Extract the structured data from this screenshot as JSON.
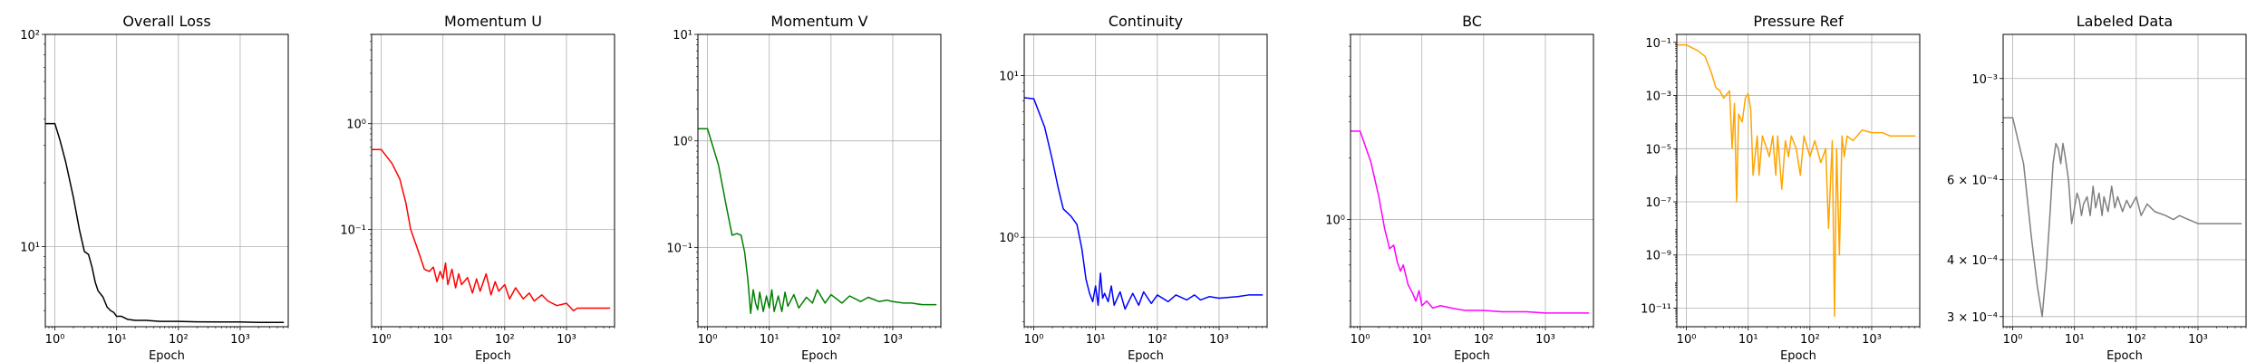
{
  "chart_data": [
    {
      "type": "line",
      "title": "Overall Loss",
      "xlabel": "Epoch",
      "ylabel": "",
      "xscale": "log",
      "yscale": "log",
      "xlim": [
        0.7,
        6000
      ],
      "ylim": [
        4.2,
        100
      ],
      "grid": true,
      "color": "#000000",
      "x_ticks": [
        1,
        10,
        100,
        1000
      ],
      "y_ticks": [
        10,
        100
      ],
      "series": [
        {
          "color": "#000000",
          "x": [
            0.7,
            1,
            1.2,
            1.5,
            2,
            2.5,
            3,
            3.5,
            4,
            4.5,
            5,
            6,
            7,
            8,
            9,
            10,
            12,
            15,
            20,
            30,
            50,
            100,
            200,
            500,
            1000,
            2000,
            5000
          ],
          "y": [
            38,
            38,
            32,
            25,
            17,
            12,
            9.5,
            9.2,
            8.0,
            6.8,
            6.2,
            5.8,
            5.2,
            5.0,
            4.9,
            4.7,
            4.7,
            4.55,
            4.5,
            4.5,
            4.45,
            4.45,
            4.43,
            4.42,
            4.42,
            4.4,
            4.4
          ]
        }
      ]
    },
    {
      "type": "line",
      "title": "Momentum U",
      "xlabel": "Epoch",
      "ylabel": "",
      "xscale": "log",
      "yscale": "log",
      "xlim": [
        0.7,
        6000
      ],
      "ylim": [
        0.012,
        7
      ],
      "grid": true,
      "color": "#ff0000",
      "x_ticks": [
        1,
        10,
        100,
        1000
      ],
      "y_ticks": [
        0.1,
        1
      ],
      "series": [
        {
          "color": "#ff0000",
          "x": [
            0.7,
            1,
            1.5,
            2,
            2.5,
            3,
            4,
            5,
            6,
            7,
            8,
            9,
            10,
            11,
            12,
            14,
            16,
            18,
            20,
            25,
            30,
            35,
            40,
            50,
            60,
            70,
            80,
            100,
            120,
            150,
            200,
            250,
            300,
            400,
            500,
            700,
            1000,
            1300,
            1500,
            2000,
            3000,
            5000
          ],
          "y": [
            0.57,
            0.57,
            0.42,
            0.3,
            0.18,
            0.1,
            0.062,
            0.042,
            0.04,
            0.044,
            0.032,
            0.04,
            0.034,
            0.048,
            0.03,
            0.042,
            0.028,
            0.038,
            0.03,
            0.035,
            0.025,
            0.034,
            0.026,
            0.038,
            0.024,
            0.032,
            0.026,
            0.03,
            0.022,
            0.028,
            0.022,
            0.025,
            0.021,
            0.024,
            0.021,
            0.019,
            0.02,
            0.017,
            0.018,
            0.018,
            0.018,
            0.018
          ]
        }
      ]
    },
    {
      "type": "line",
      "title": "Momentum V",
      "xlabel": "Epoch",
      "ylabel": "",
      "xscale": "log",
      "yscale": "log",
      "xlim": [
        0.7,
        6000
      ],
      "ylim": [
        0.018,
        10
      ],
      "grid": true,
      "color": "#008000",
      "x_ticks": [
        1,
        10,
        100,
        1000
      ],
      "y_ticks": [
        0.1,
        1,
        10
      ],
      "series": [
        {
          "color": "#008000",
          "x": [
            0.7,
            1,
            1.5,
            2,
            2.5,
            3,
            3.5,
            4,
            4.5,
            5,
            5.5,
            6,
            6.5,
            7,
            8,
            9,
            10,
            11,
            12,
            14,
            16,
            18,
            20,
            25,
            30,
            40,
            50,
            60,
            80,
            100,
            150,
            200,
            300,
            400,
            600,
            800,
            1000,
            1500,
            2000,
            3000,
            5000
          ],
          "y": [
            1.3,
            1.3,
            0.6,
            0.25,
            0.13,
            0.135,
            0.13,
            0.09,
            0.05,
            0.024,
            0.04,
            0.03,
            0.026,
            0.038,
            0.025,
            0.035,
            0.027,
            0.04,
            0.025,
            0.035,
            0.025,
            0.038,
            0.028,
            0.036,
            0.027,
            0.034,
            0.03,
            0.04,
            0.03,
            0.036,
            0.03,
            0.035,
            0.031,
            0.034,
            0.031,
            0.032,
            0.031,
            0.03,
            0.03,
            0.029,
            0.029
          ]
        }
      ]
    },
    {
      "type": "line",
      "title": "Continuity",
      "xlabel": "Epoch",
      "ylabel": "",
      "xscale": "log",
      "yscale": "log",
      "xlim": [
        0.7,
        6000
      ],
      "ylim": [
        0.28,
        18
      ],
      "grid": true,
      "color": "#0000ff",
      "x_ticks": [
        1,
        10,
        100,
        1000
      ],
      "y_ticks": [
        1,
        10
      ],
      "series": [
        {
          "color": "#0000ff",
          "x": [
            0.7,
            1,
            1.5,
            2,
            2.5,
            3,
            4,
            5,
            6,
            7,
            8,
            9,
            10,
            11,
            12,
            13,
            14,
            16,
            18,
            20,
            25,
            30,
            40,
            50,
            60,
            80,
            100,
            150,
            200,
            300,
            400,
            500,
            700,
            1000,
            2000,
            3000,
            5000
          ],
          "y": [
            7.3,
            7.2,
            4.8,
            3.0,
            2.0,
            1.5,
            1.35,
            1.2,
            0.85,
            0.55,
            0.45,
            0.4,
            0.5,
            0.38,
            0.6,
            0.42,
            0.45,
            0.4,
            0.5,
            0.38,
            0.46,
            0.36,
            0.45,
            0.38,
            0.46,
            0.39,
            0.44,
            0.4,
            0.44,
            0.41,
            0.44,
            0.41,
            0.43,
            0.42,
            0.43,
            0.44,
            0.44
          ]
        }
      ]
    },
    {
      "type": "line",
      "title": "BC",
      "xlabel": "Epoch",
      "ylabel": "",
      "xscale": "log",
      "yscale": "log",
      "xlim": [
        0.7,
        6000
      ],
      "ylim": [
        0.3,
        8
      ],
      "grid": true,
      "color": "#ff00ff",
      "x_ticks": [
        1,
        10,
        100,
        1000
      ],
      "y_ticks": [
        1
      ],
      "series": [
        {
          "color": "#ff00ff",
          "x": [
            0.7,
            1,
            1.5,
            2,
            2.5,
            3,
            3.5,
            4,
            4.5,
            5,
            6,
            7,
            8,
            9,
            10,
            12,
            15,
            20,
            30,
            50,
            100,
            200,
            500,
            1000,
            2000,
            5000
          ],
          "y": [
            2.7,
            2.7,
            1.9,
            1.3,
            0.9,
            0.72,
            0.75,
            0.62,
            0.56,
            0.6,
            0.48,
            0.44,
            0.4,
            0.45,
            0.38,
            0.4,
            0.37,
            0.38,
            0.37,
            0.36,
            0.36,
            0.355,
            0.355,
            0.35,
            0.35,
            0.35
          ]
        }
      ]
    },
    {
      "type": "line",
      "title": "Pressure Ref",
      "xlabel": "Epoch",
      "ylabel": "",
      "xscale": "log",
      "yscale": "log",
      "xlim": [
        0.7,
        6000
      ],
      "ylim": [
        2e-12,
        0.2
      ],
      "grid": true,
      "color": "#ffa500",
      "x_ticks": [
        1,
        10,
        100,
        1000
      ],
      "y_ticks": [
        1e-11,
        1e-09,
        1e-07,
        1e-05,
        0.001,
        0.1
      ],
      "series": [
        {
          "color": "#ffa500",
          "x": [
            0.7,
            1,
            1.5,
            2,
            2.5,
            3,
            3.5,
            4,
            5,
            5.5,
            6,
            6.5,
            7,
            8,
            9,
            10,
            11,
            12,
            14,
            15,
            17,
            20,
            22,
            25,
            28,
            30,
            35,
            40,
            45,
            50,
            60,
            70,
            80,
            100,
            120,
            150,
            180,
            200,
            230,
            250,
            270,
            300,
            330,
            360,
            400,
            500,
            700,
            1000,
            1500,
            2000,
            3000,
            5000
          ],
          "y": [
            0.08,
            0.08,
            0.05,
            0.03,
            0.008,
            0.002,
            0.0015,
            0.0008,
            0.0015,
            1e-05,
            0.0005,
            1e-07,
            0.0002,
            0.0001,
            0.0008,
            0.0012,
            0.0003,
            1e-06,
            3e-05,
            1e-06,
            3e-05,
            1e-05,
            5e-06,
            3e-05,
            1e-06,
            3e-05,
            3e-07,
            2e-05,
            5e-06,
            3e-05,
            1e-05,
            1e-06,
            3e-05,
            5e-06,
            2e-05,
            3e-06,
            1e-05,
            1e-08,
            2e-05,
            5e-12,
            1e-05,
            1e-09,
            3e-05,
            5e-06,
            3e-05,
            2e-05,
            5e-05,
            4e-05,
            4e-05,
            3e-05,
            3e-05,
            3e-05
          ]
        }
      ]
    },
    {
      "type": "line",
      "title": "Labeled Data",
      "xlabel": "Epoch",
      "ylabel": "",
      "xscale": "log",
      "yscale": "log",
      "xlim": [
        0.7,
        6000
      ],
      "ylim": [
        0.000285,
        0.00125
      ],
      "grid": true,
      "color": "#808080",
      "x_ticks": [
        1,
        10,
        100,
        1000
      ],
      "y_ticks": [
        0.0003,
        0.0004,
        0.0006,
        0.001
      ],
      "y_tick_labels": [
        "3 × 10⁻⁴",
        "4 × 10⁻⁴",
        "6 × 10⁻⁴",
        "10⁻³"
      ],
      "series": [
        {
          "color": "#808080",
          "x": [
            0.7,
            1,
            1.5,
            2,
            2.5,
            3,
            3.5,
            4,
            4.5,
            5,
            5.5,
            6,
            6.5,
            7,
            8,
            9,
            10,
            11,
            12,
            13,
            14,
            16,
            18,
            20,
            22,
            25,
            28,
            30,
            35,
            40,
            45,
            50,
            60,
            70,
            80,
            100,
            120,
            150,
            200,
            300,
            400,
            500,
            700,
            1000,
            1500,
            2000,
            3000,
            5000
          ],
          "y": [
            0.00082,
            0.00082,
            0.00065,
            0.00045,
            0.00035,
            0.0003,
            0.00038,
            0.0005,
            0.00065,
            0.00072,
            0.0007,
            0.00065,
            0.00072,
            0.00068,
            0.0006,
            0.00048,
            0.00052,
            0.00056,
            0.00054,
            0.0005,
            0.00053,
            0.00055,
            0.0005,
            0.00058,
            0.00052,
            0.00056,
            0.0005,
            0.00055,
            0.00051,
            0.00058,
            0.00052,
            0.00055,
            0.00051,
            0.00054,
            0.00052,
            0.00055,
            0.0005,
            0.00053,
            0.00051,
            0.0005,
            0.00049,
            0.0005,
            0.00049,
            0.00048,
            0.00048,
            0.00048,
            0.00048,
            0.00048
          ]
        }
      ]
    }
  ]
}
